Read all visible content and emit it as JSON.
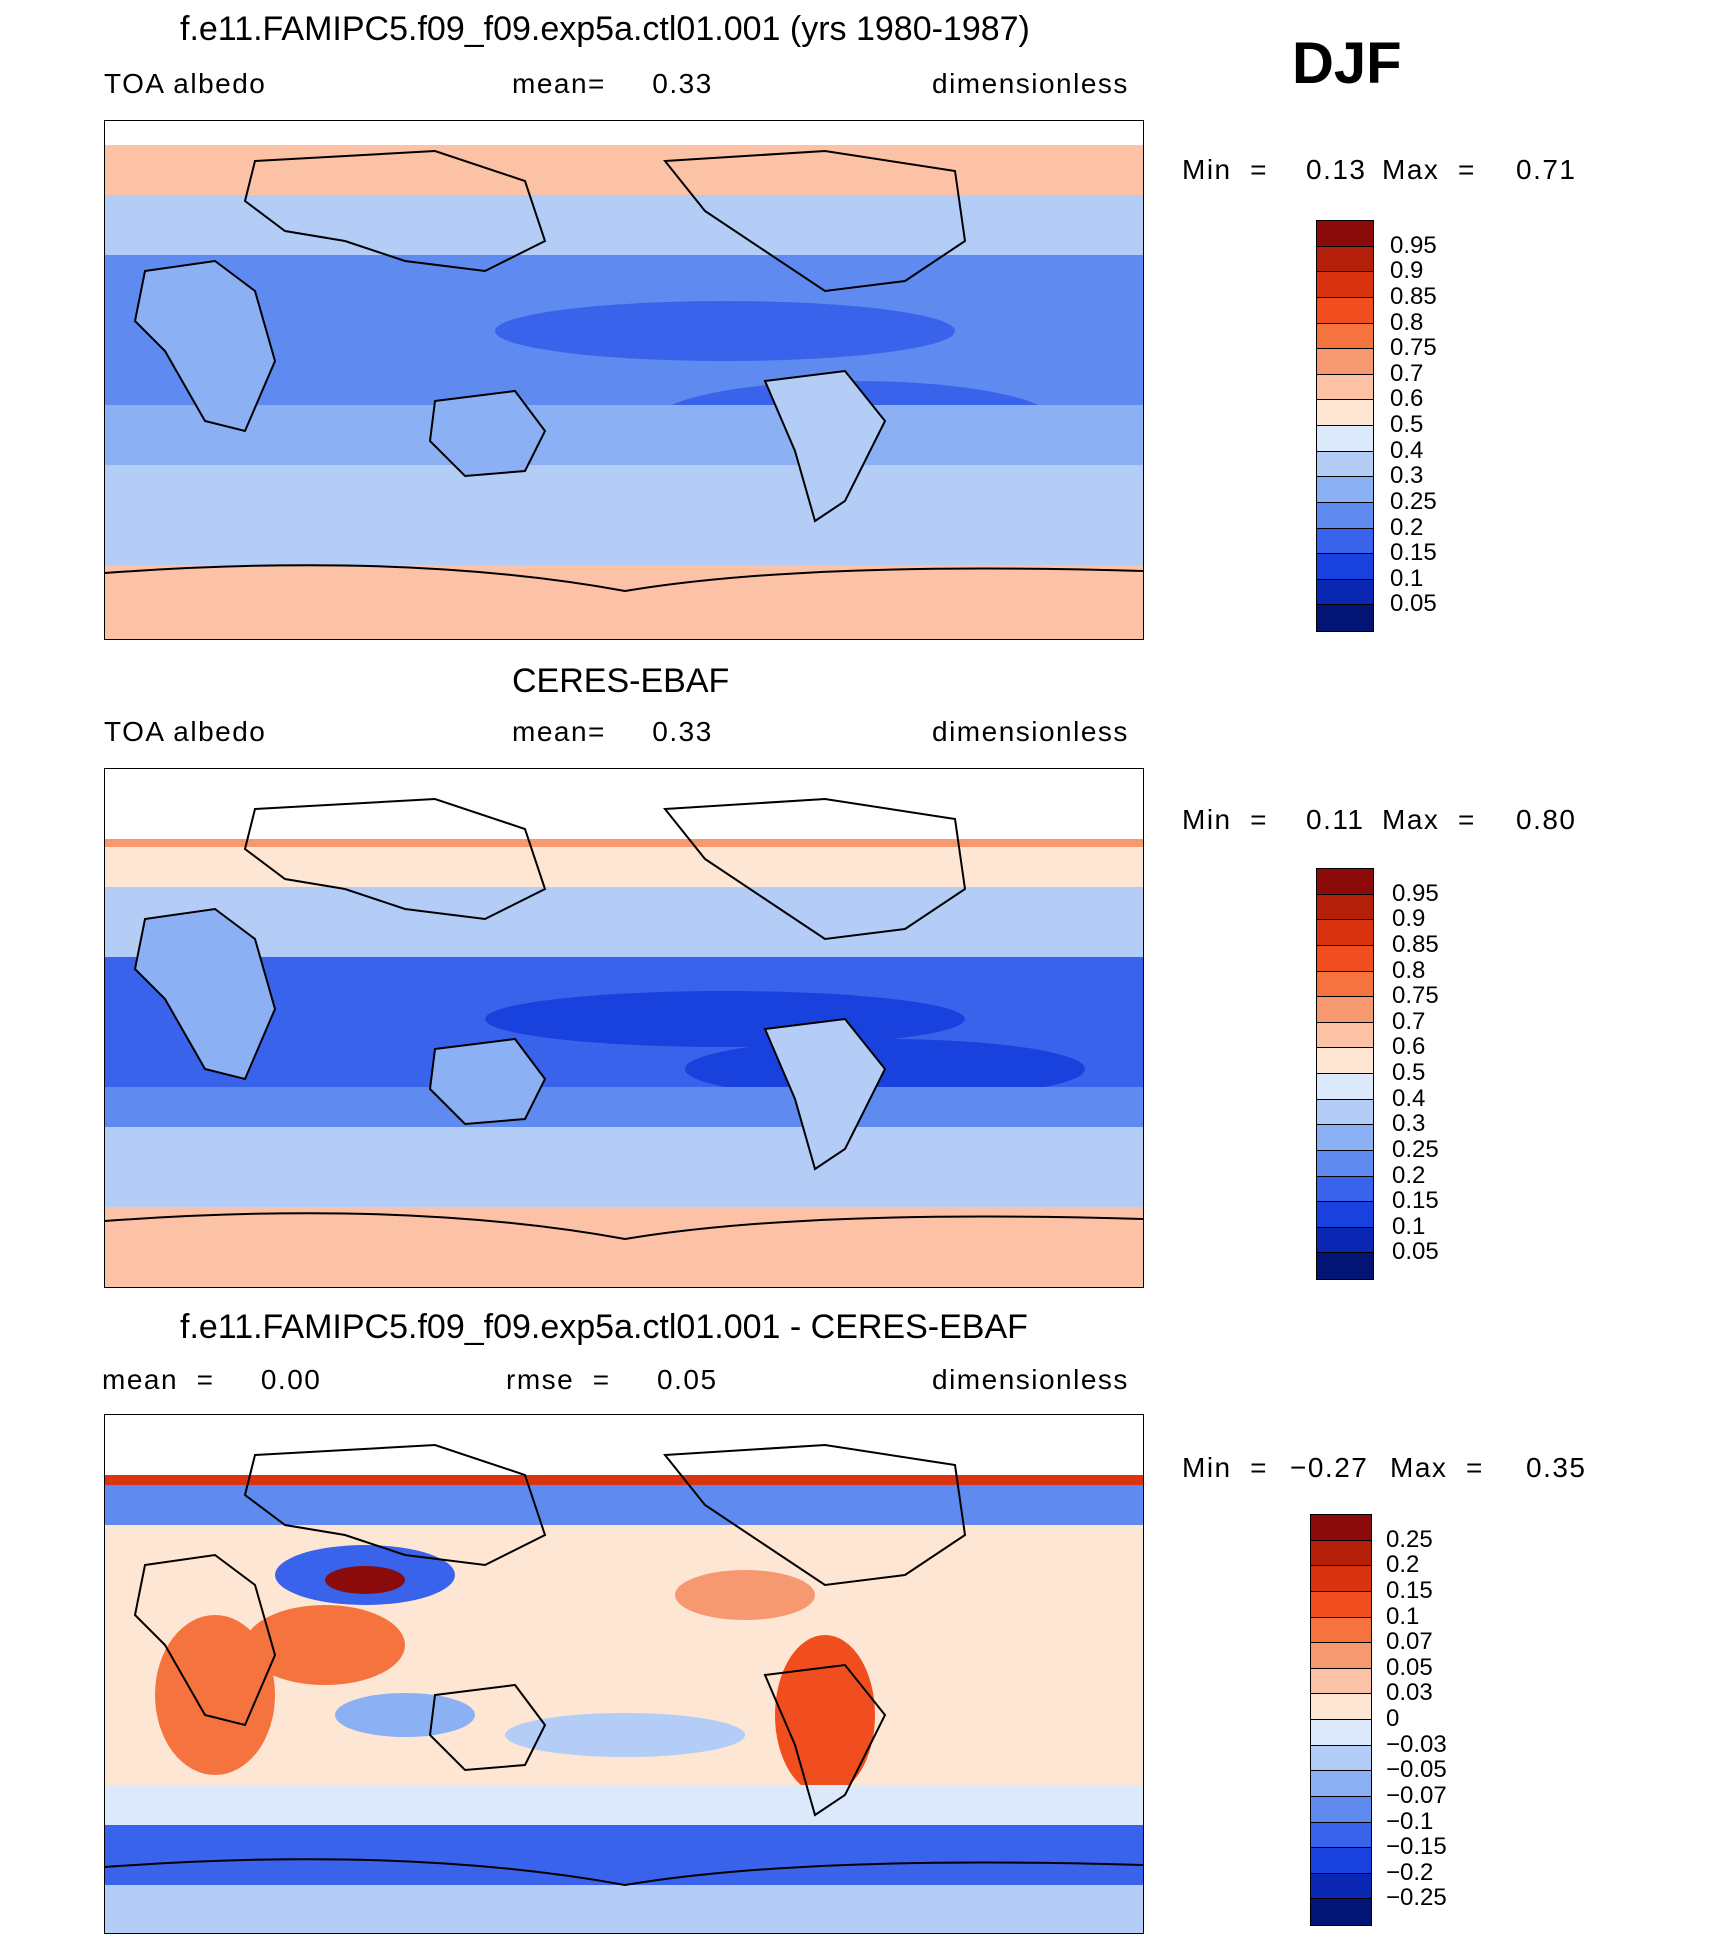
{
  "season": "DJF",
  "panels": [
    {
      "id": "model",
      "title": "f.e11.FAMIPC5.f09_f09.exp5a.ctl01.001 (yrs 1980-1987)",
      "left_label": "TOA  albedo",
      "center_label": "mean=     0.33",
      "right_label": "dimensionless",
      "min_label": "Min  =",
      "min_value": "0.13",
      "max_label": "Max  =",
      "max_value": "0.71",
      "colorbar": {
        "labels": [
          "0.95",
          "0.9",
          "0.85",
          "0.8",
          "0.75",
          "0.7",
          "0.6",
          "0.5",
          "0.4",
          "0.3",
          "0.25",
          "0.2",
          "0.15",
          "0.1",
          "0.05"
        ],
        "colors": [
          "#8b0a0a",
          "#b5200a",
          "#d93310",
          "#f04e1f",
          "#f5733e",
          "#f79970",
          "#fbc2a6",
          "#fde6d3",
          "#dbe9fb",
          "#b3cdf7",
          "#8cb0f4",
          "#5f8af0",
          "#3a63ec",
          "#1941de",
          "#0a27b4",
          "#031574"
        ]
      },
      "chart_data": {
        "type": "heatmap",
        "description_units": "dimensionless",
        "variable": "TOA albedo",
        "mean": 0.33,
        "min": 0.13,
        "max": 0.71
      }
    },
    {
      "id": "obs",
      "title": "CERES-EBAF",
      "left_label": "TOA  albedo",
      "center_label": "mean=     0.33",
      "right_label": "dimensionless",
      "min_label": "Min  =",
      "min_value": "0.11",
      "max_label": "Max  =",
      "max_value": "0.80",
      "colorbar": {
        "labels": [
          "0.95",
          "0.9",
          "0.85",
          "0.8",
          "0.75",
          "0.7",
          "0.6",
          "0.5",
          "0.4",
          "0.3",
          "0.25",
          "0.2",
          "0.15",
          "0.1",
          "0.05"
        ],
        "colors": [
          "#8b0a0a",
          "#b5200a",
          "#d93310",
          "#f04e1f",
          "#f5733e",
          "#f79970",
          "#fbc2a6",
          "#fde6d3",
          "#dbe9fb",
          "#b3cdf7",
          "#8cb0f4",
          "#5f8af0",
          "#3a63ec",
          "#1941de",
          "#0a27b4",
          "#031574"
        ]
      },
      "chart_data": {
        "type": "heatmap",
        "description_units": "dimensionless",
        "variable": "TOA albedo",
        "mean": 0.33,
        "min": 0.11,
        "max": 0.8
      }
    },
    {
      "id": "diff",
      "title": "f.e11.FAMIPC5.f09_f09.exp5a.ctl01.001 - CERES-EBAF",
      "left_label": "mean  =     0.00",
      "center_label": "rmse  =     0.05",
      "right_label": "dimensionless",
      "min_label": "Min  =",
      "min_value": "−0.27",
      "max_label": "Max  =",
      "max_value": "0.35",
      "colorbar": {
        "labels": [
          "0.25",
          "0.2",
          "0.15",
          "0.1",
          "0.07",
          "0.05",
          "0.03",
          "0",
          "−0.03",
          "−0.05",
          "−0.07",
          "−0.1",
          "−0.15",
          "−0.2",
          "−0.25"
        ],
        "colors": [
          "#8b0a0a",
          "#b5200a",
          "#d93310",
          "#f04e1f",
          "#f5733e",
          "#f79970",
          "#fbc2a6",
          "#fde6d3",
          "#dbe9fb",
          "#b3cdf7",
          "#8cb0f4",
          "#5f8af0",
          "#3a63ec",
          "#1941de",
          "#0a27b4",
          "#031574"
        ]
      },
      "chart_data": {
        "type": "heatmap",
        "description_units": "dimensionless",
        "mean": 0.0,
        "rmse": 0.05,
        "min": -0.27,
        "max": 0.35
      }
    }
  ]
}
